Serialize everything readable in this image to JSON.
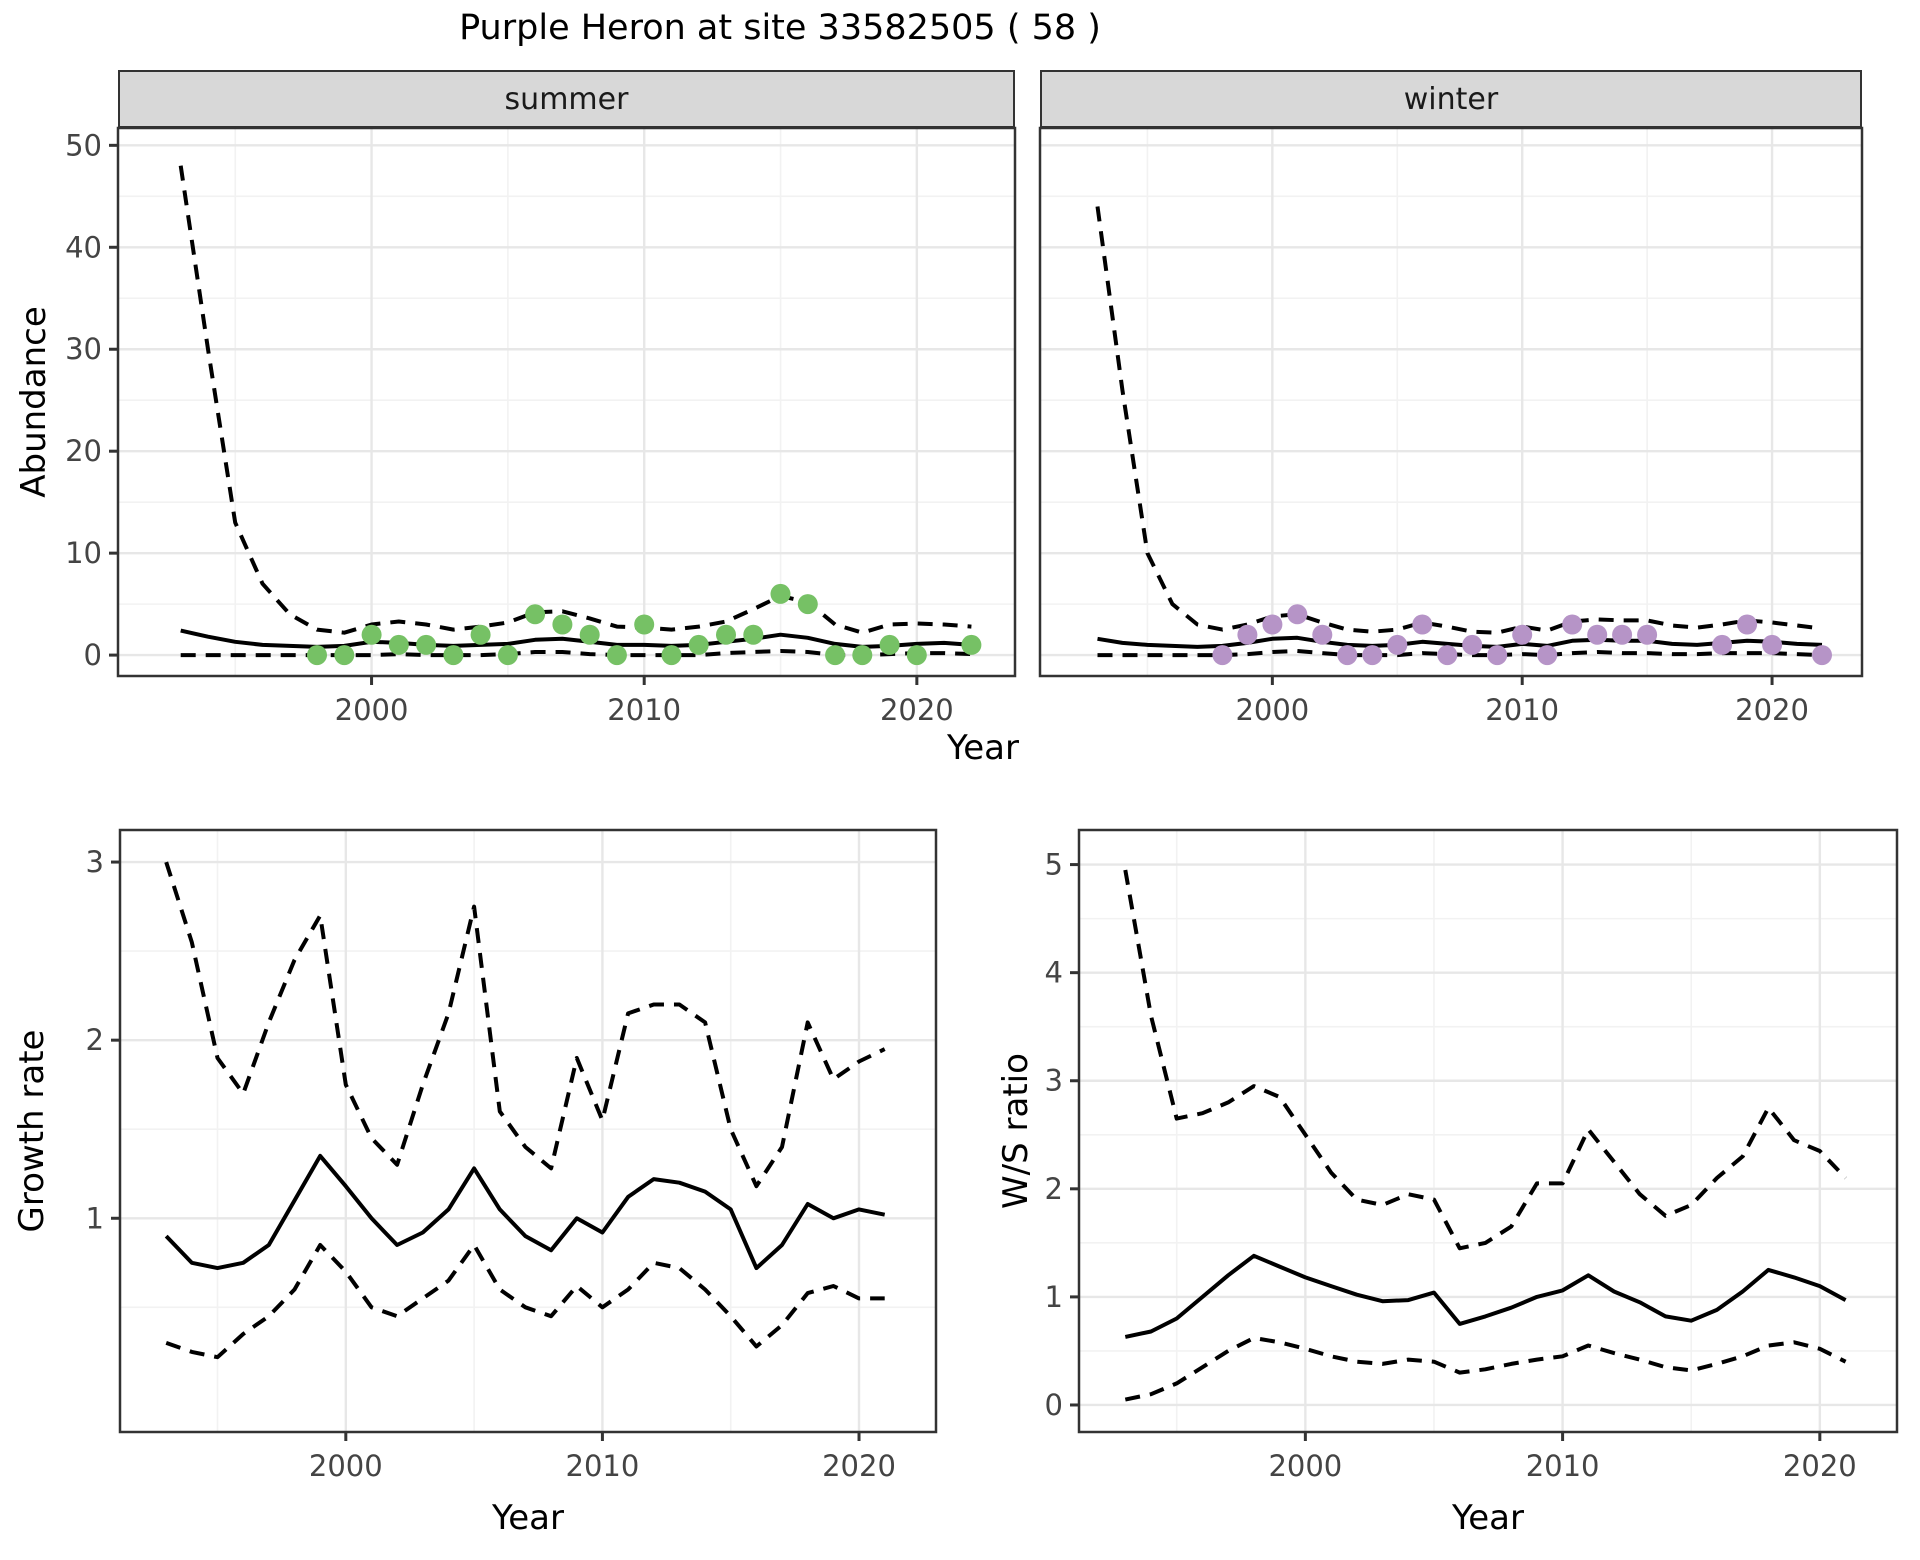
{
  "title": "Purple Heron at site 33582505 ( 58 )",
  "facets": {
    "summer_label": "summer",
    "winter_label": "winter"
  },
  "axis_titles": {
    "abundance": "Abundance",
    "year": "Year",
    "growth": "Growth rate",
    "ws": "W/S ratio"
  },
  "colors": {
    "summer_point": "#76c165",
    "winter_point": "#b694c7",
    "line": "#000000",
    "grid_major": "#e7e7e7",
    "grid_minor": "#f2f2f2",
    "strip_bg": "#d8d8d8",
    "panel_border": "#333333",
    "tick_mark": "#333333",
    "tick_label": "#444444",
    "background": "#ffffff"
  },
  "chart_data": [
    {
      "id": "abundance_summer",
      "type": "line",
      "facet_label": "summer",
      "xlabel": "Year",
      "ylabel": "Abundance",
      "xlim": [
        1990.7,
        2023.6
      ],
      "ylim": [
        -2.05,
        51.7
      ],
      "x_ticks": [
        2000,
        2010,
        2020
      ],
      "x_minor": [
        1995,
        2005,
        2015
      ],
      "y_ticks": [
        0,
        10,
        20,
        30,
        40,
        50
      ],
      "y_minor": [
        5,
        15,
        25,
        35,
        45
      ],
      "years": [
        1993,
        1994,
        1995,
        1996,
        1997,
        1998,
        1999,
        2000,
        2001,
        2002,
        2003,
        2004,
        2005,
        2006,
        2007,
        2008,
        2009,
        2010,
        2011,
        2012,
        2013,
        2014,
        2015,
        2016,
        2017,
        2018,
        2019,
        2020,
        2021,
        2022
      ],
      "series": [
        {
          "name": "upper_95ci",
          "style": "dashed",
          "values": [
            48,
            30,
            13,
            7,
            4,
            2.5,
            2.2,
            3,
            3.3,
            3,
            2.5,
            2.8,
            3.2,
            4.2,
            4.3,
            3.6,
            2.8,
            2.7,
            2.5,
            2.8,
            3.3,
            4.5,
            5.8,
            5.2,
            3,
            2.2,
            3,
            3.1,
            3,
            2.8
          ]
        },
        {
          "name": "median",
          "style": "solid",
          "values": [
            2.4,
            1.8,
            1.3,
            1,
            0.9,
            0.8,
            0.9,
            1.3,
            1.2,
            1,
            0.9,
            1,
            1.1,
            1.5,
            1.6,
            1.3,
            1,
            1,
            0.9,
            1,
            1.3,
            1.6,
            2,
            1.7,
            1.1,
            0.8,
            0.9,
            1.1,
            1.2,
            1
          ]
        },
        {
          "name": "lower_95ci",
          "style": "dashed",
          "values": [
            0,
            0,
            0,
            0,
            0,
            0,
            0,
            0,
            0.1,
            0,
            0,
            0,
            0.1,
            0.3,
            0.3,
            0.1,
            0,
            0,
            0,
            0,
            0.2,
            0.3,
            0.4,
            0.3,
            0,
            0,
            0.1,
            0.2,
            0.2,
            0.1
          ]
        }
      ],
      "points": {
        "name": "observed_counts",
        "color": "#76c165",
        "data": [
          [
            1998,
            0
          ],
          [
            1999,
            0
          ],
          [
            2000,
            2
          ],
          [
            2001,
            1
          ],
          [
            2002,
            1
          ],
          [
            2003,
            0
          ],
          [
            2004,
            2
          ],
          [
            2005,
            0
          ],
          [
            2006,
            4
          ],
          [
            2007,
            3
          ],
          [
            2008,
            2
          ],
          [
            2009,
            0
          ],
          [
            2010,
            3
          ],
          [
            2011,
            0
          ],
          [
            2012,
            1
          ],
          [
            2013,
            2
          ],
          [
            2014,
            2
          ],
          [
            2015,
            6
          ],
          [
            2016,
            5
          ],
          [
            2017,
            0
          ],
          [
            2018,
            0
          ],
          [
            2019,
            1
          ],
          [
            2020,
            0
          ],
          [
            2022,
            1
          ]
        ]
      }
    },
    {
      "id": "abundance_winter",
      "type": "line",
      "facet_label": "winter",
      "xlabel": "Year",
      "ylabel": "Abundance",
      "xlim": [
        1990.7,
        2023.6
      ],
      "ylim": [
        -2.05,
        51.7
      ],
      "x_ticks": [
        2000,
        2010,
        2020
      ],
      "x_minor": [
        1995,
        2005,
        2015
      ],
      "y_ticks": [
        0,
        10,
        20,
        30,
        40,
        50
      ],
      "y_minor": [
        5,
        15,
        25,
        35,
        45
      ],
      "years": [
        1993,
        1994,
        1995,
        1996,
        1997,
        1998,
        1999,
        2000,
        2001,
        2002,
        2003,
        2004,
        2005,
        2006,
        2007,
        2008,
        2009,
        2010,
        2011,
        2012,
        2013,
        2014,
        2015,
        2016,
        2017,
        2018,
        2019,
        2020,
        2021,
        2022
      ],
      "series": [
        {
          "name": "upper_95ci",
          "style": "dashed",
          "values": [
            44,
            26,
            10,
            5,
            3,
            2.5,
            3,
            3.8,
            4,
            3.2,
            2.5,
            2.3,
            2.5,
            3.2,
            2.8,
            2.3,
            2.2,
            2.8,
            2.4,
            3.3,
            3.5,
            3.4,
            3.4,
            2.9,
            2.7,
            3,
            3.4,
            3.2,
            2.9,
            2.6
          ]
        },
        {
          "name": "median",
          "style": "solid",
          "values": [
            1.6,
            1.2,
            1,
            0.9,
            0.8,
            0.9,
            1.2,
            1.6,
            1.7,
            1.3,
            1,
            0.9,
            1,
            1.3,
            1.1,
            0.9,
            0.8,
            1.1,
            0.9,
            1.4,
            1.5,
            1.4,
            1.4,
            1.1,
            1,
            1.2,
            1.4,
            1.3,
            1.1,
            1
          ]
        },
        {
          "name": "lower_95ci",
          "style": "dashed",
          "values": [
            0,
            0,
            0,
            0,
            0,
            0,
            0.1,
            0.3,
            0.4,
            0.2,
            0,
            0,
            0,
            0.2,
            0.1,
            0,
            0,
            0.1,
            0,
            0.2,
            0.3,
            0.2,
            0.2,
            0.1,
            0.1,
            0.2,
            0.2,
            0.2,
            0.1,
            0
          ]
        }
      ],
      "points": {
        "name": "observed_counts",
        "color": "#b694c7",
        "data": [
          [
            1998,
            0
          ],
          [
            1999,
            2
          ],
          [
            2000,
            3
          ],
          [
            2001,
            4
          ],
          [
            2002,
            2
          ],
          [
            2003,
            0
          ],
          [
            2004,
            0
          ],
          [
            2005,
            1
          ],
          [
            2006,
            3
          ],
          [
            2007,
            0
          ],
          [
            2008,
            1
          ],
          [
            2009,
            0
          ],
          [
            2010,
            2
          ],
          [
            2011,
            0
          ],
          [
            2012,
            3
          ],
          [
            2013,
            2
          ],
          [
            2014,
            2
          ],
          [
            2015,
            2
          ],
          [
            2018,
            1
          ],
          [
            2019,
            3
          ],
          [
            2020,
            1
          ],
          [
            2022,
            0
          ]
        ]
      }
    },
    {
      "id": "growth_rate",
      "type": "line",
      "facet_label": "",
      "xlabel": "Year",
      "ylabel": "Growth rate",
      "xlim": [
        1991.2,
        2023.0
      ],
      "ylim": [
        -0.2,
        3.18
      ],
      "x_ticks": [
        2000,
        2010,
        2020
      ],
      "x_minor": [
        1995,
        2005,
        2015
      ],
      "y_ticks": [
        1,
        2,
        3
      ],
      "y_minor": [
        0.5,
        1.5,
        2.5
      ],
      "years": [
        1993,
        1994,
        1995,
        1996,
        1997,
        1998,
        1999,
        2000,
        2001,
        2002,
        2003,
        2004,
        2005,
        2006,
        2007,
        2008,
        2009,
        2010,
        2011,
        2012,
        2013,
        2014,
        2015,
        2016,
        2017,
        2018,
        2019,
        2020,
        2021
      ],
      "series": [
        {
          "name": "upper_95ci",
          "style": "dashed",
          "values": [
            3.0,
            2.55,
            1.9,
            1.7,
            2.1,
            2.45,
            2.7,
            1.75,
            1.45,
            1.3,
            1.75,
            2.15,
            2.75,
            1.6,
            1.4,
            1.28,
            1.9,
            1.55,
            2.15,
            2.2,
            2.2,
            2.1,
            1.5,
            1.18,
            1.4,
            2.1,
            1.78,
            1.88,
            1.95
          ]
        },
        {
          "name": "median",
          "style": "solid",
          "values": [
            0.9,
            0.75,
            0.72,
            0.75,
            0.85,
            1.1,
            1.35,
            1.18,
            1.0,
            0.85,
            0.92,
            1.05,
            1.28,
            1.05,
            0.9,
            0.82,
            1.0,
            0.92,
            1.12,
            1.22,
            1.2,
            1.15,
            1.05,
            0.72,
            0.85,
            1.08,
            1.0,
            1.05,
            1.02
          ]
        },
        {
          "name": "lower_95ci",
          "style": "dashed",
          "values": [
            0.3,
            0.25,
            0.22,
            0.35,
            0.45,
            0.6,
            0.85,
            0.7,
            0.5,
            0.45,
            0.55,
            0.65,
            0.85,
            0.6,
            0.5,
            0.45,
            0.62,
            0.5,
            0.6,
            0.75,
            0.72,
            0.6,
            0.45,
            0.28,
            0.4,
            0.58,
            0.62,
            0.55,
            0.55
          ]
        }
      ],
      "points": null
    },
    {
      "id": "ws_ratio",
      "type": "line",
      "facet_label": "",
      "xlabel": "Year",
      "ylabel": "W/S ratio",
      "xlim": [
        1991.2,
        2023.0
      ],
      "ylim": [
        -0.25,
        5.32
      ],
      "x_ticks": [
        2000,
        2010,
        2020
      ],
      "x_minor": [
        1995,
        2005,
        2015
      ],
      "y_ticks": [
        0,
        1,
        2,
        3,
        4,
        5
      ],
      "y_minor": [
        0.5,
        1.5,
        2.5,
        3.5,
        4.5
      ],
      "years": [
        1993,
        1994,
        1995,
        1996,
        1997,
        1998,
        1999,
        2000,
        2001,
        2002,
        2003,
        2004,
        2005,
        2006,
        2007,
        2008,
        2009,
        2010,
        2011,
        2012,
        2013,
        2014,
        2015,
        2016,
        2017,
        2018,
        2019,
        2020,
        2021
      ],
      "series": [
        {
          "name": "upper_95ci",
          "style": "dashed",
          "values": [
            4.95,
            3.6,
            2.65,
            2.7,
            2.8,
            2.95,
            2.85,
            2.5,
            2.15,
            1.9,
            1.85,
            1.95,
            1.9,
            1.45,
            1.5,
            1.65,
            2.05,
            2.05,
            2.55,
            2.25,
            1.95,
            1.75,
            1.85,
            2.1,
            2.3,
            2.75,
            2.45,
            2.35,
            2.1
          ]
        },
        {
          "name": "median",
          "style": "solid",
          "values": [
            0.63,
            0.68,
            0.8,
            1.0,
            1.2,
            1.38,
            1.28,
            1.18,
            1.1,
            1.02,
            0.96,
            0.97,
            1.04,
            0.75,
            0.82,
            0.9,
            1.0,
            1.06,
            1.2,
            1.05,
            0.95,
            0.82,
            0.78,
            0.88,
            1.05,
            1.25,
            1.18,
            1.1,
            0.97
          ]
        },
        {
          "name": "lower_95ci",
          "style": "dashed",
          "values": [
            0.05,
            0.1,
            0.2,
            0.35,
            0.5,
            0.62,
            0.58,
            0.52,
            0.45,
            0.4,
            0.38,
            0.42,
            0.4,
            0.3,
            0.33,
            0.38,
            0.42,
            0.45,
            0.55,
            0.48,
            0.42,
            0.35,
            0.32,
            0.38,
            0.45,
            0.55,
            0.58,
            0.52,
            0.4
          ]
        }
      ],
      "points": null
    }
  ]
}
